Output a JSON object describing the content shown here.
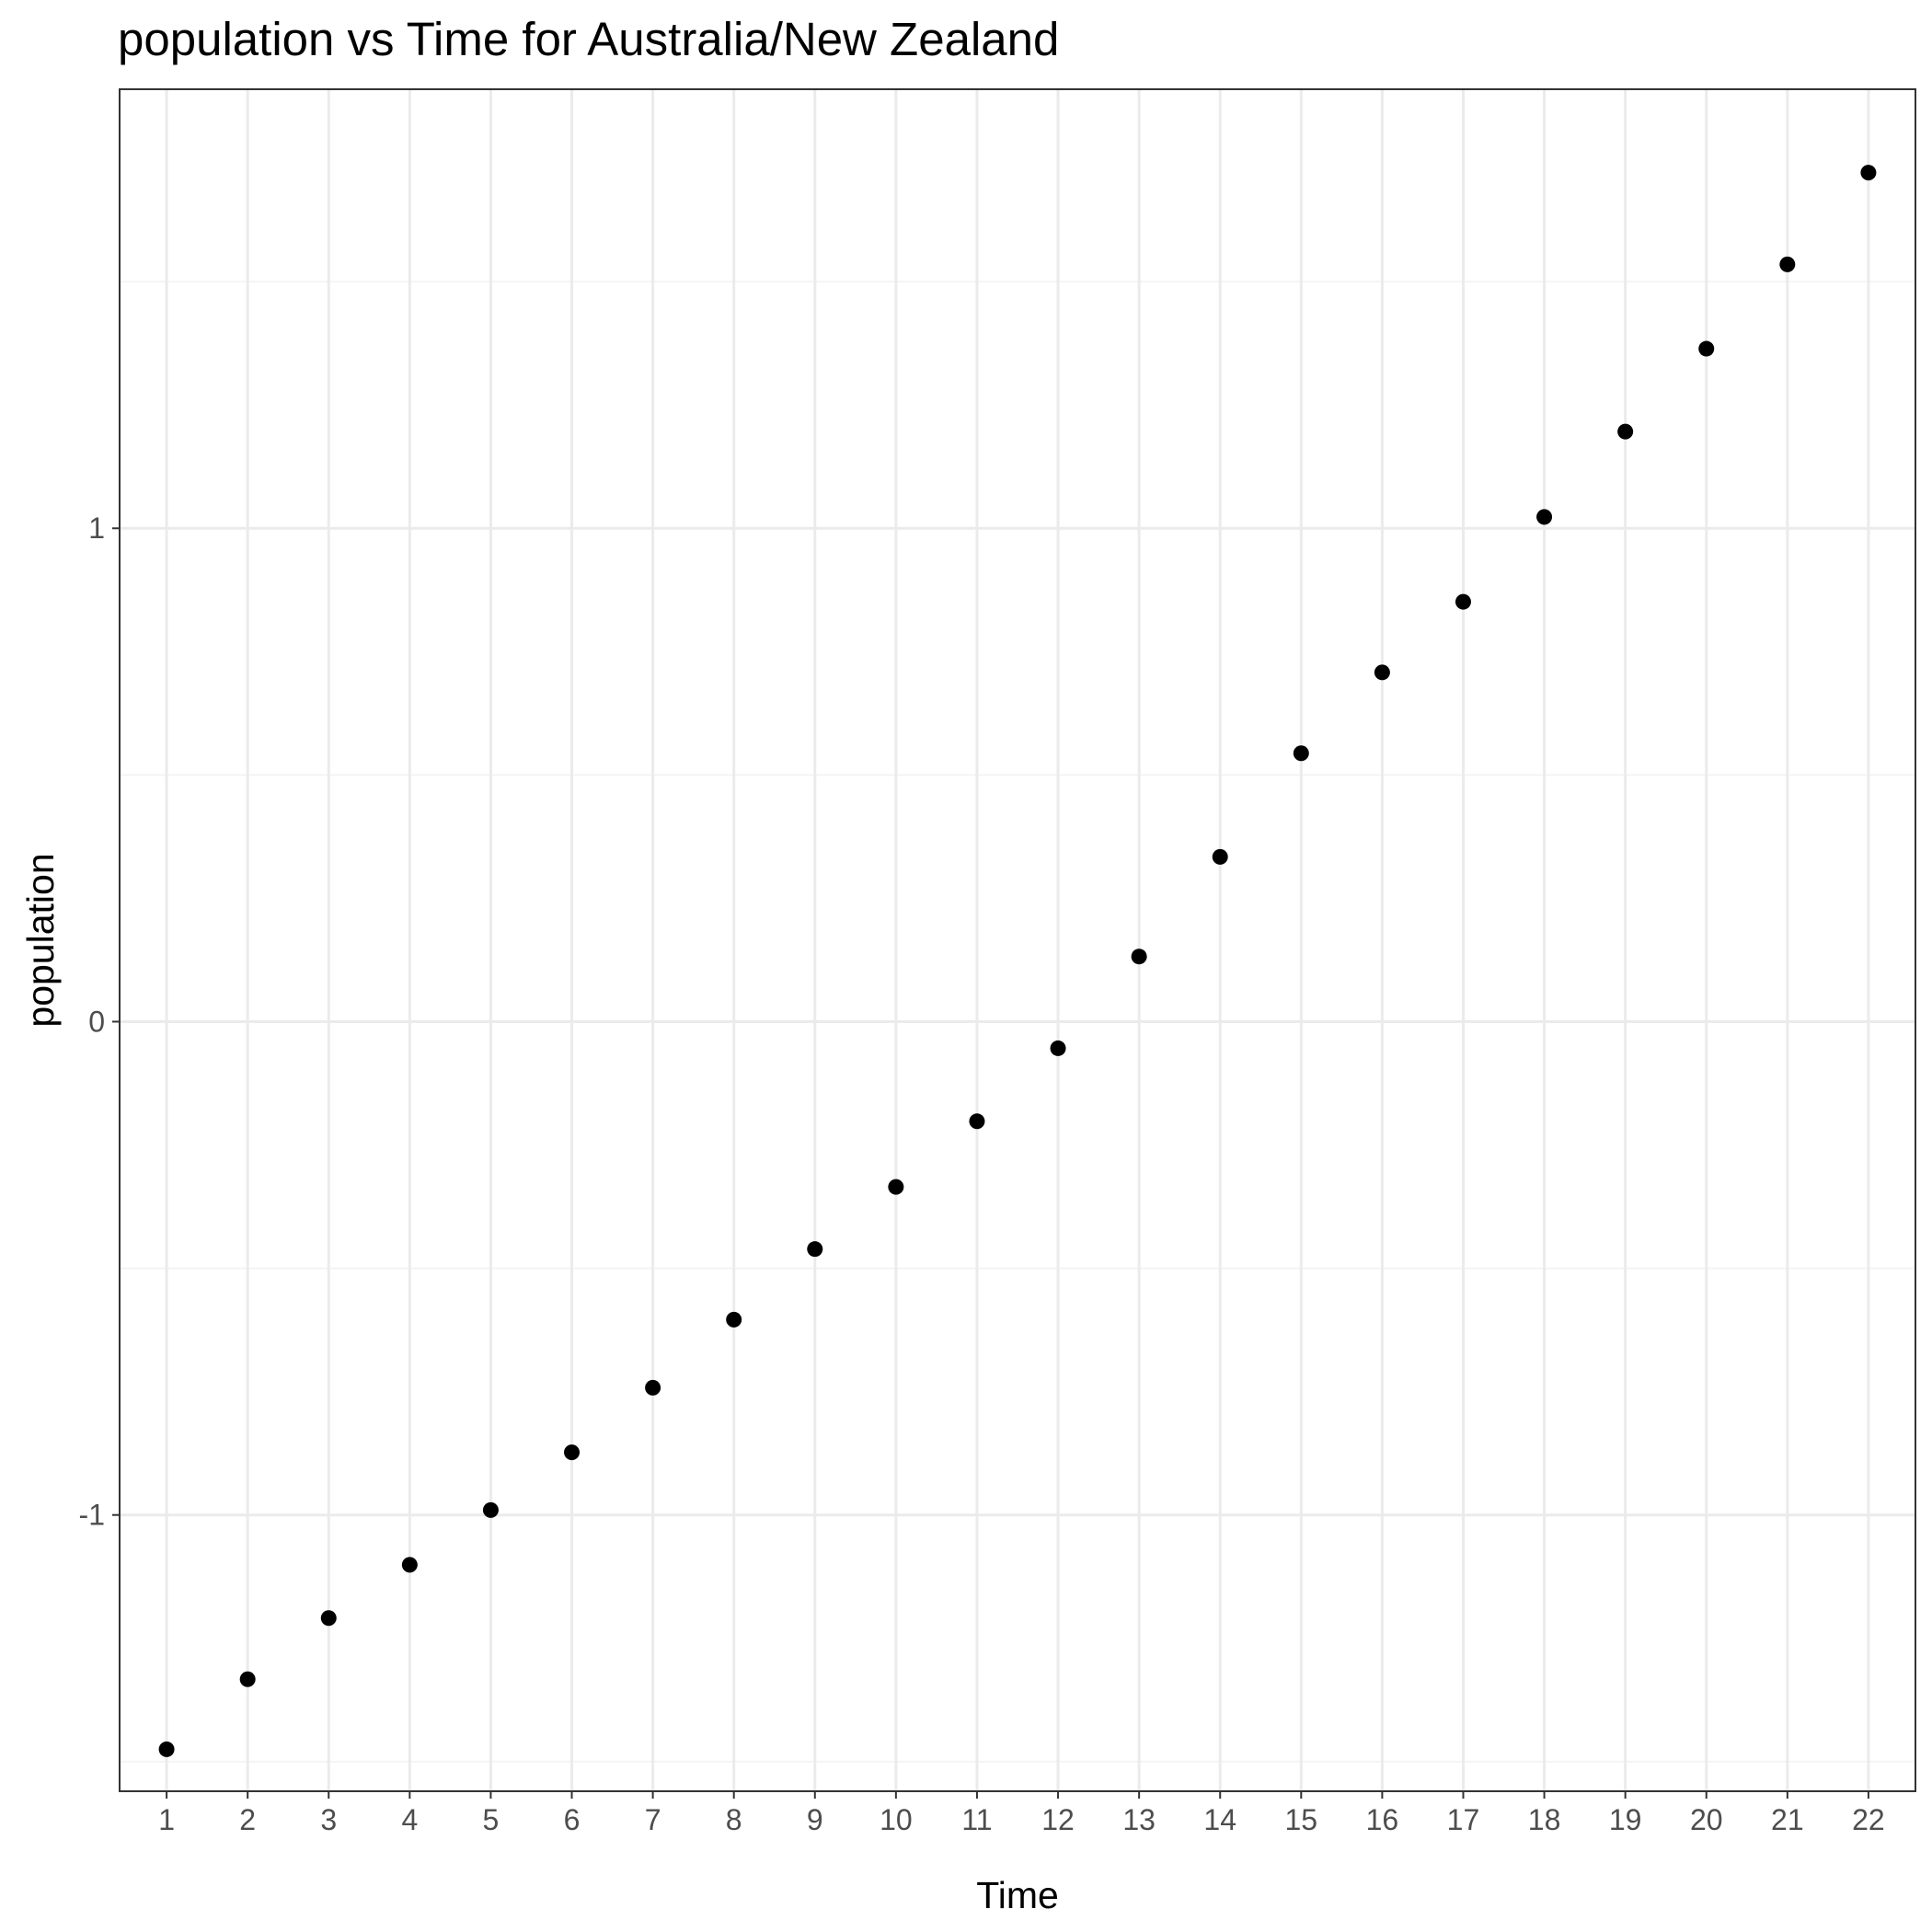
{
  "chart_data": {
    "type": "scatter",
    "title": "population  vs Time for Australia/New Zealand",
    "xlabel": "Time",
    "ylabel": "population",
    "x": [
      1,
      2,
      3,
      4,
      5,
      6,
      7,
      8,
      9,
      10,
      11,
      12,
      13,
      14,
      15,
      16,
      17,
      18,
      19,
      20,
      21,
      22
    ],
    "series": [
      {
        "values": [
          -1.475,
          -1.333,
          -1.209,
          -1.101,
          -0.99,
          -0.873,
          -0.742,
          -0.604,
          -0.461,
          -0.335,
          -0.202,
          -0.054,
          0.132,
          0.334,
          0.544,
          0.708,
          0.851,
          1.023,
          1.196,
          1.364,
          1.535,
          1.721
        ]
      }
    ],
    "xlim": [
      0.42,
      22.58
    ],
    "ylim": [
      -1.56,
      1.89
    ],
    "x_ticks": [
      "1",
      "2",
      "3",
      "4",
      "5",
      "6",
      "7",
      "8",
      "9",
      "10",
      "11",
      "12",
      "13",
      "14",
      "15",
      "16",
      "17",
      "18",
      "19",
      "20",
      "21",
      "22"
    ],
    "y_ticks": [
      {
        "value": -1,
        "label": "-1"
      },
      {
        "value": 0,
        "label": "0"
      },
      {
        "value": 1,
        "label": "1"
      }
    ],
    "y_minor_ticks": [
      -1.5,
      -0.5,
      0.5,
      1.5
    ],
    "grid": true,
    "legend": "none",
    "colors": {
      "point": "#000000",
      "grid_major": "#ebebeb",
      "grid_minor": "#f4f4f4",
      "panel_border": "#333333",
      "tick_text": "#4d4d4d",
      "axis_text": "#000000",
      "background": "#ffffff"
    }
  }
}
